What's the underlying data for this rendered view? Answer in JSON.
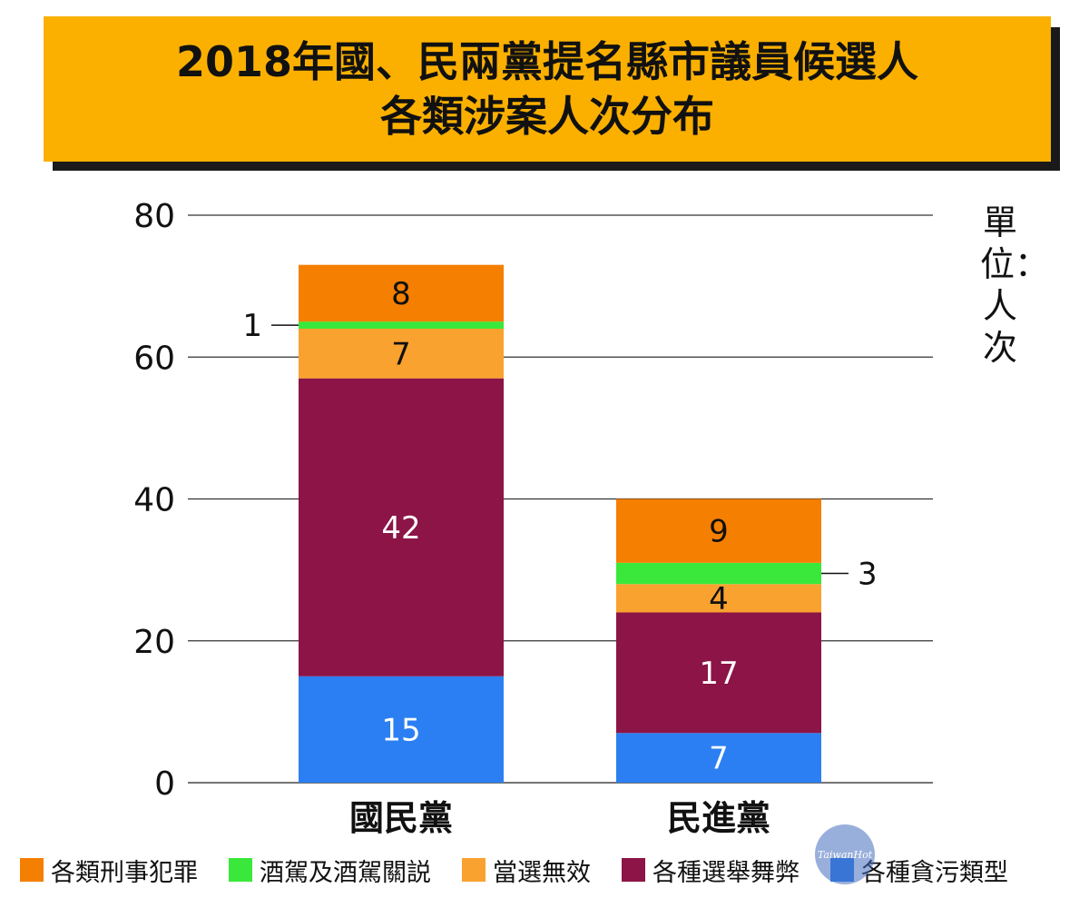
{
  "title": {
    "line1": "2018年國、民兩黨提名縣市議員候選人",
    "line2": "各類涉案人次分布"
  },
  "unit_label": "單位：人次",
  "watermark_text": "TaiwanHot",
  "colors": {
    "title_bg": "#fbb000",
    "criminal": "#f57f00",
    "drunk_driving": "#39e83a",
    "election_void": "#f9a22f",
    "vote_buying": "#8c1446",
    "corruption": "#2b7ff2"
  },
  "chart_data": {
    "type": "bar",
    "stacked": true,
    "categories": [
      "國民黨",
      "民進黨"
    ],
    "ylim": [
      0,
      80
    ],
    "yticks": [
      0,
      20,
      40,
      60,
      80
    ],
    "series": [
      {
        "name": "各種貪污類型",
        "values": [
          15,
          7
        ],
        "color": "#2b7ff2"
      },
      {
        "name": "各種選舉舞弊",
        "values": [
          42,
          17
        ],
        "color": "#8c1446"
      },
      {
        "name": "當選無效",
        "values": [
          7,
          4
        ],
        "color": "#f9a22f"
      },
      {
        "name": "酒駕及酒駕關説",
        "values": [
          1,
          3
        ],
        "color": "#39e83a"
      },
      {
        "name": "各類刑事犯罪",
        "values": [
          8,
          9
        ],
        "color": "#f57f00"
      }
    ],
    "legend_order": [
      "各類刑事犯罪",
      "酒駕及酒駕關説",
      "當選無效",
      "各種選舉舞弊",
      "各種貪污類型"
    ],
    "grid": true,
    "legend_position": "bottom"
  }
}
